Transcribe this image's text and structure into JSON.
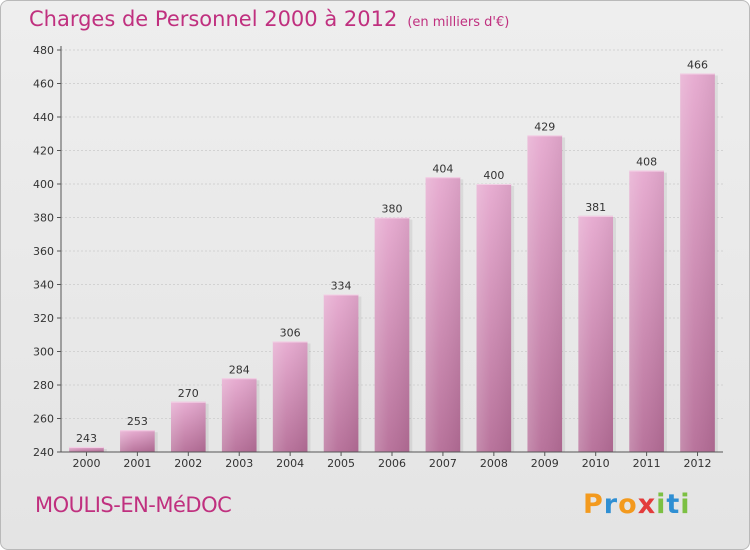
{
  "title": "Charges de Personnel 2000 à 2012",
  "unit_note": "(en milliers d'€)",
  "commune": "MOULIS-EN-MéDOC",
  "brand": {
    "letters": [
      "P",
      "r",
      "o",
      "x",
      "i",
      "t",
      "i"
    ],
    "colors": [
      "#f39a1e",
      "#2f8fd3",
      "#f39a1e",
      "#e33b3b",
      "#7cc043",
      "#2f8fd3",
      "#7cc043"
    ]
  },
  "colors": {
    "title": "#c0307f",
    "bar_top": "#e6a9cf",
    "bar_bottom": "#b56d97",
    "axis": "#555555",
    "grid": "#d2d2d2"
  },
  "chart_data": {
    "type": "bar",
    "title": "Charges de Personnel 2000 à 2012",
    "subtitle": "(en milliers d'€)",
    "categories": [
      "2000",
      "2001",
      "2002",
      "2003",
      "2004",
      "2005",
      "2006",
      "2007",
      "2008",
      "2009",
      "2010",
      "2011",
      "2012"
    ],
    "values": [
      243,
      253,
      270,
      284,
      306,
      334,
      380,
      404,
      400,
      429,
      381,
      408,
      466
    ],
    "ylim": [
      240,
      480
    ],
    "yticks": [
      240,
      260,
      280,
      300,
      320,
      340,
      360,
      380,
      400,
      420,
      440,
      460,
      480
    ],
    "grid": true
  }
}
